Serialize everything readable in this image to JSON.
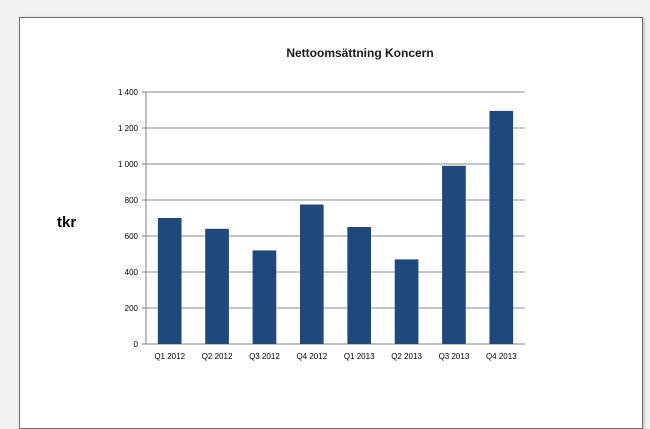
{
  "chart_data": {
    "type": "bar",
    "title": "Nettoomsättning Koncern",
    "ylabel": "tkr",
    "xlabel": "",
    "categories": [
      "Q1 2012",
      "Q2 2012",
      "Q3 2012",
      "Q4 2012",
      "Q1 2013",
      "Q2 2013",
      "Q3 2013",
      "Q4 2013"
    ],
    "values": [
      700,
      640,
      520,
      775,
      650,
      470,
      990,
      1295
    ],
    "ylim": [
      0,
      1400
    ],
    "yticks": [
      0,
      200,
      400,
      600,
      800,
      1000,
      1200,
      1400
    ],
    "ytick_labels": [
      "0",
      "200",
      "400",
      "600",
      "800",
      "1 000",
      "1 200",
      "1 400"
    ],
    "grid": true,
    "bar_color": "#1f497d",
    "legend": "none"
  }
}
